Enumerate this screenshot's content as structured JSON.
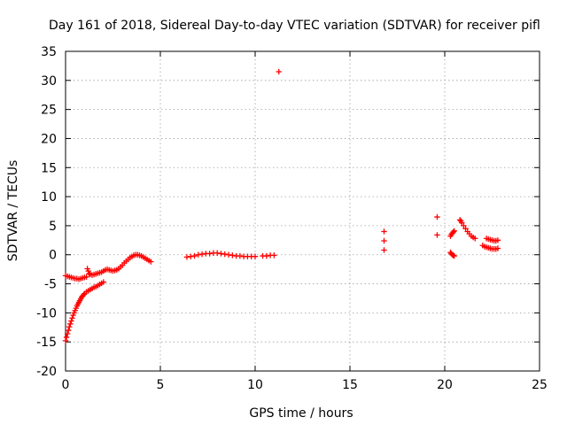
{
  "chart_data": {
    "type": "scatter",
    "title": "Day 161 of 2018, Sidereal Day-to-day VTEC variation (SDTVAR) for receiver pifl",
    "xlabel": "GPS time / hours",
    "ylabel": "SDTVAR / TECUs",
    "xlim": [
      0,
      25
    ],
    "ylim": [
      -20,
      35
    ],
    "xticks": [
      0,
      5,
      10,
      15,
      20,
      25
    ],
    "yticks": [
      -20,
      -15,
      -10,
      -5,
      0,
      5,
      10,
      15,
      20,
      25,
      30,
      35
    ],
    "grid": true,
    "marker": "+",
    "color": "#ff0000",
    "series": [
      {
        "name": "SDTVAR",
        "points": [
          [
            0.0,
            -14.8
          ],
          [
            0.05,
            -14.2
          ],
          [
            0.1,
            -13.6
          ],
          [
            0.15,
            -13.0
          ],
          [
            0.2,
            -12.4
          ],
          [
            0.25,
            -11.9
          ],
          [
            0.3,
            -11.4
          ],
          [
            0.35,
            -10.9
          ],
          [
            0.4,
            -10.4
          ],
          [
            0.45,
            -10.0
          ],
          [
            0.5,
            -9.6
          ],
          [
            0.55,
            -9.2
          ],
          [
            0.6,
            -8.8
          ],
          [
            0.65,
            -8.5
          ],
          [
            0.7,
            -8.2
          ],
          [
            0.75,
            -7.9
          ],
          [
            0.8,
            -7.6
          ],
          [
            0.85,
            -7.3
          ],
          [
            0.9,
            -7.1
          ],
          [
            0.95,
            -6.9
          ],
          [
            1.0,
            -6.7
          ],
          [
            1.1,
            -6.4
          ],
          [
            1.2,
            -6.2
          ],
          [
            1.3,
            -6.0
          ],
          [
            1.4,
            -5.8
          ],
          [
            1.5,
            -5.6
          ],
          [
            1.6,
            -5.5
          ],
          [
            1.7,
            -5.3
          ],
          [
            1.8,
            -5.1
          ],
          [
            1.9,
            -4.9
          ],
          [
            2.0,
            -4.7
          ],
          [
            0.0,
            -3.6
          ],
          [
            0.1,
            -3.7
          ],
          [
            0.2,
            -3.8
          ],
          [
            0.3,
            -3.9
          ],
          [
            0.4,
            -4.0
          ],
          [
            0.5,
            -4.1
          ],
          [
            0.6,
            -4.1
          ],
          [
            0.7,
            -4.2
          ],
          [
            0.8,
            -4.1
          ],
          [
            0.9,
            -4.0
          ],
          [
            1.0,
            -3.9
          ],
          [
            1.1,
            -3.8
          ],
          [
            1.15,
            -2.4
          ],
          [
            1.2,
            -2.8
          ],
          [
            1.25,
            -3.2
          ],
          [
            1.3,
            -3.4
          ],
          [
            1.4,
            -3.5
          ],
          [
            1.5,
            -3.4
          ],
          [
            1.6,
            -3.3
          ],
          [
            1.7,
            -3.2
          ],
          [
            1.8,
            -3.1
          ],
          [
            1.9,
            -3.0
          ],
          [
            2.0,
            -2.8
          ],
          [
            2.1,
            -2.6
          ],
          [
            2.2,
            -2.5
          ],
          [
            2.3,
            -2.6
          ],
          [
            2.4,
            -2.7
          ],
          [
            2.5,
            -2.8
          ],
          [
            2.6,
            -2.7
          ],
          [
            2.7,
            -2.6
          ],
          [
            2.8,
            -2.4
          ],
          [
            2.9,
            -2.1
          ],
          [
            3.0,
            -1.8
          ],
          [
            3.1,
            -1.4
          ],
          [
            3.2,
            -1.1
          ],
          [
            3.3,
            -0.8
          ],
          [
            3.4,
            -0.5
          ],
          [
            3.5,
            -0.3
          ],
          [
            3.6,
            -0.1
          ],
          [
            3.7,
            0.0
          ],
          [
            3.8,
            0.0
          ],
          [
            3.9,
            -0.1
          ],
          [
            4.0,
            -0.2
          ],
          [
            4.1,
            -0.4
          ],
          [
            4.2,
            -0.6
          ],
          [
            4.3,
            -0.8
          ],
          [
            4.4,
            -1.0
          ],
          [
            4.5,
            -1.2
          ],
          [
            6.4,
            -0.4
          ],
          [
            6.6,
            -0.3
          ],
          [
            6.8,
            -0.2
          ],
          [
            7.0,
            0.0
          ],
          [
            7.2,
            0.1
          ],
          [
            7.4,
            0.2
          ],
          [
            7.6,
            0.2
          ],
          [
            7.8,
            0.3
          ],
          [
            8.0,
            0.3
          ],
          [
            8.2,
            0.2
          ],
          [
            8.4,
            0.1
          ],
          [
            8.6,
            0.0
          ],
          [
            8.8,
            -0.1
          ],
          [
            9.0,
            -0.2
          ],
          [
            9.2,
            -0.2
          ],
          [
            9.4,
            -0.3
          ],
          [
            9.6,
            -0.3
          ],
          [
            9.8,
            -0.3
          ],
          [
            10.0,
            -0.3
          ],
          [
            10.4,
            -0.2
          ],
          [
            10.6,
            -0.2
          ],
          [
            10.8,
            -0.1
          ],
          [
            11.0,
            -0.1
          ],
          [
            11.25,
            31.5
          ],
          [
            16.8,
            4.0
          ],
          [
            16.8,
            2.4
          ],
          [
            16.8,
            0.8
          ],
          [
            19.6,
            6.5
          ],
          [
            19.6,
            3.4
          ],
          [
            20.3,
            0.4
          ],
          [
            20.35,
            0.2
          ],
          [
            20.4,
            0.0
          ],
          [
            20.45,
            -0.1
          ],
          [
            20.5,
            -0.2
          ],
          [
            20.3,
            3.2
          ],
          [
            20.35,
            3.5
          ],
          [
            20.4,
            3.7
          ],
          [
            20.45,
            3.9
          ],
          [
            20.5,
            4.1
          ],
          [
            20.8,
            6.0
          ],
          [
            20.85,
            5.8
          ],
          [
            20.9,
            5.5
          ],
          [
            21.0,
            5.0
          ],
          [
            21.1,
            4.5
          ],
          [
            21.2,
            4.0
          ],
          [
            21.3,
            3.6
          ],
          [
            21.4,
            3.2
          ],
          [
            21.5,
            3.0
          ],
          [
            21.6,
            2.8
          ],
          [
            22.0,
            1.6
          ],
          [
            22.1,
            1.4
          ],
          [
            22.2,
            1.3
          ],
          [
            22.3,
            1.2
          ],
          [
            22.4,
            1.1
          ],
          [
            22.5,
            1.0
          ],
          [
            22.6,
            1.0
          ],
          [
            22.7,
            1.0
          ],
          [
            22.8,
            1.1
          ],
          [
            22.2,
            2.8
          ],
          [
            22.3,
            2.7
          ],
          [
            22.4,
            2.6
          ],
          [
            22.5,
            2.5
          ],
          [
            22.6,
            2.4
          ],
          [
            22.7,
            2.4
          ],
          [
            22.8,
            2.5
          ]
        ]
      }
    ]
  }
}
